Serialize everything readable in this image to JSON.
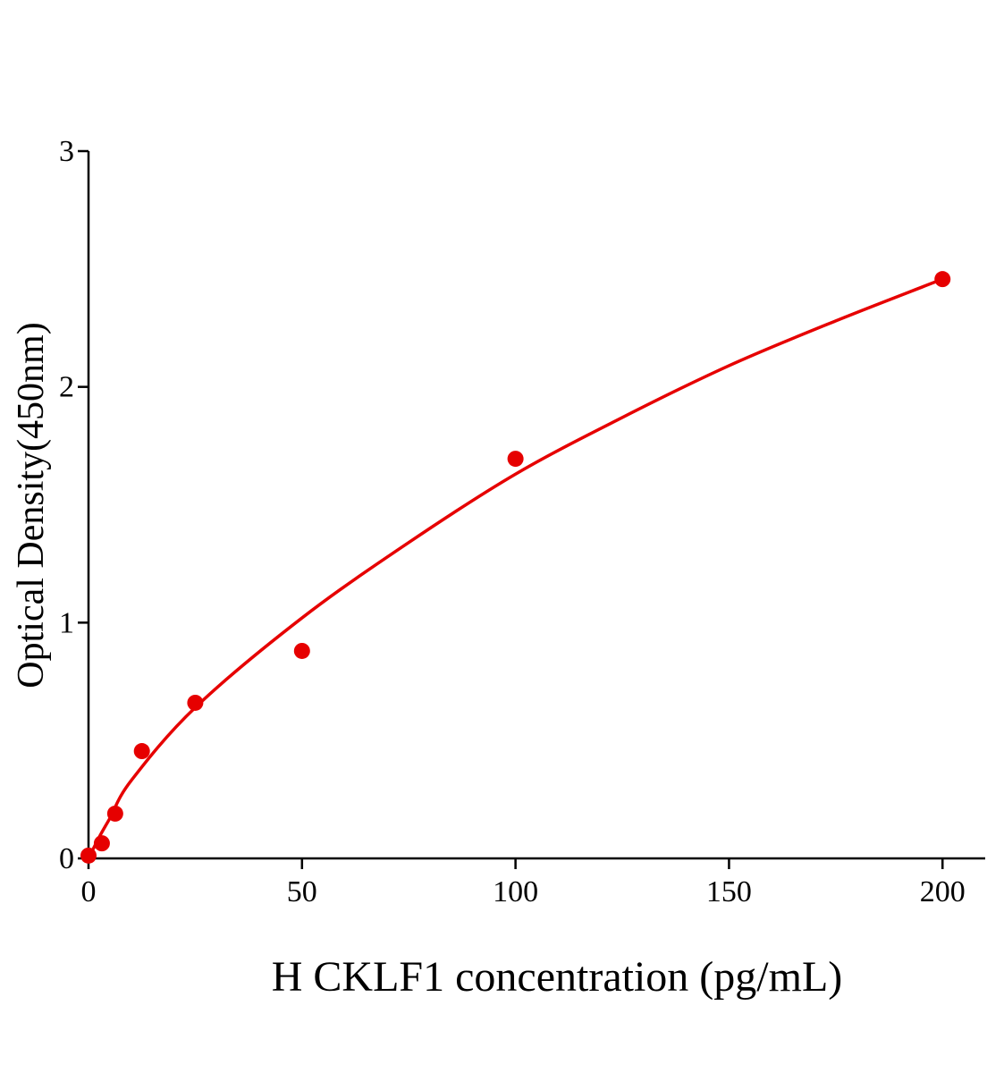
{
  "chart_data": {
    "type": "scatter",
    "x_label": "H CKLF1 concentration (pg/mL)",
    "y_label": "Optical Density(450nm)",
    "x": [
      0,
      3.125,
      6.25,
      12.5,
      25,
      50,
      100,
      200
    ],
    "values": [
      0.012,
      0.064,
      0.19,
      0.455,
      0.66,
      0.88,
      1.695,
      2.457
    ],
    "color": "#e60000",
    "fit": {
      "x": [
        0,
        2.5,
        5,
        10,
        25,
        50,
        75,
        100,
        125,
        150,
        175,
        200
      ],
      "values": [
        0,
        0.09,
        0.17,
        0.33,
        0.64,
        1.02,
        1.34,
        1.63,
        1.87,
        2.09,
        2.28,
        2.457
      ]
    },
    "xlim": [
      0,
      210
    ],
    "ylim": [
      0,
      3
    ],
    "xticks": [
      0,
      50,
      100,
      150,
      200
    ],
    "yticks": [
      0,
      1,
      2,
      3
    ]
  }
}
